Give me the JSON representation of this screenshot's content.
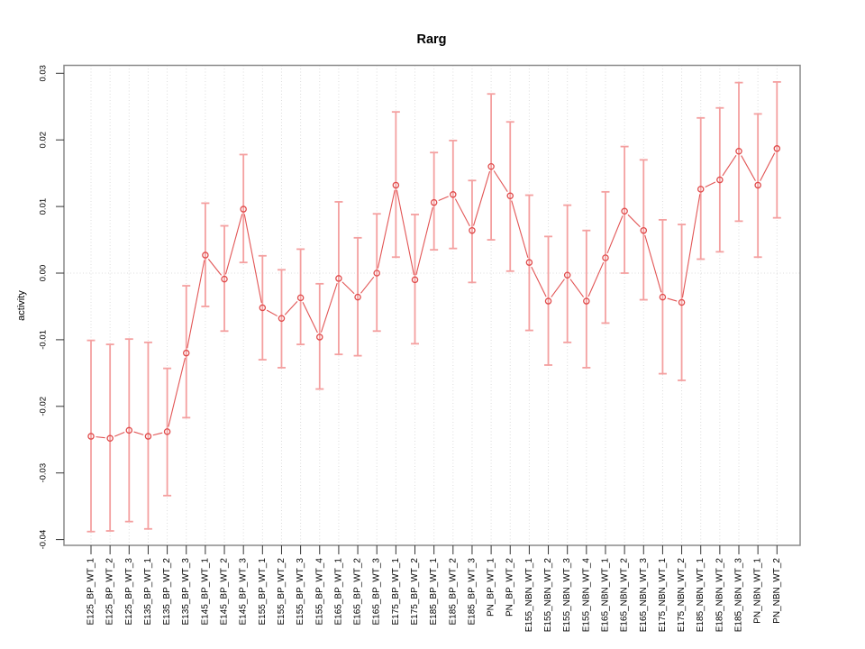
{
  "figure": {
    "title": "Rarg",
    "ylabel": "activity"
  },
  "chart_data": {
    "type": "scatter",
    "title": "Rarg",
    "xlabel": "",
    "ylabel": "activity",
    "legend": "none",
    "grid": "vertical dotted gridline at every category; horizontal dotted line at y=0",
    "marker": "open-circle with vertical error bars, consecutive points connected by line segments (R type='b')",
    "ylim": [
      -0.0412,
      0.0313
    ],
    "yticks": [
      0.03,
      0.02,
      0.01,
      0,
      -0.01,
      -0.02,
      -0.03,
      -0.04
    ],
    "categories": [
      "E125_BP_WT_1",
      "E125_BP_WT_2",
      "E125_BP_WT_3",
      "E135_BP_WT_1",
      "E135_BP_WT_2",
      "E135_BP_WT_3",
      "E145_BP_WT_1",
      "E145_BP_WT_2",
      "E145_BP_WT_3",
      "E155_BP_WT_1",
      "E155_BP_WT_2",
      "E155_BP_WT_3",
      "E155_BP_WT_4",
      "E165_BP_WT_1",
      "E165_BP_WT_2",
      "E165_BP_WT_3",
      "E175_BP_WT_1",
      "E175_BP_WT_2",
      "E185_BP_WT_1",
      "E185_BP_WT_2",
      "E185_BP_WT_3",
      "PN_BP_WT_1",
      "PN_BP_WT_2",
      "E155_NBN_WT_1",
      "E155_NBN_WT_2",
      "E155_NBN_WT_3",
      "E155_NBN_WT_4",
      "E165_NBN_WT_1",
      "E165_NBN_WT_2",
      "E165_NBN_WT_3",
      "E175_NBN_WT_1",
      "E175_NBN_WT_2",
      "E185_NBN_WT_1",
      "E185_NBN_WT_2",
      "E185_NBN_WT_3",
      "PN_NBN_WT_1",
      "PN_NBN_WT_2"
    ],
    "values": [
      -0.0245,
      -0.0248,
      -0.0236,
      -0.0245,
      -0.0238,
      -0.012,
      0.0027,
      -0.0009,
      0.0096,
      -0.0052,
      -0.0068,
      -0.0037,
      -0.0096,
      -0.0008,
      -0.0036,
      0.0,
      0.0132,
      -0.001,
      0.0106,
      0.0118,
      0.0064,
      0.016,
      0.0116,
      0.0016,
      -0.0042,
      -0.0003,
      -0.0042,
      0.0023,
      0.0093,
      0.0064,
      -0.0036,
      -0.0044,
      0.0126,
      0.014,
      0.0183,
      0.0132,
      0.0187
    ],
    "error_low": [
      -0.0388,
      -0.0387,
      -0.0373,
      -0.0384,
      -0.0334,
      -0.0217,
      -0.005,
      -0.0087,
      0.0016,
      -0.013,
      -0.0142,
      -0.0107,
      -0.0174,
      -0.0122,
      -0.0124,
      -0.0087,
      0.0024,
      -0.0106,
      0.0035,
      0.0037,
      -0.0014,
      0.005,
      0.0003,
      -0.0086,
      -0.0138,
      -0.0104,
      -0.0142,
      -0.0075,
      0.0,
      -0.004,
      -0.0151,
      -0.0161,
      0.0021,
      0.0032,
      0.0078,
      0.0024,
      0.0083
    ],
    "error_high": [
      -0.0101,
      -0.0107,
      -0.0099,
      -0.0104,
      -0.0143,
      -0.0019,
      0.0105,
      0.0071,
      0.0178,
      0.0026,
      0.0005,
      0.0036,
      -0.0016,
      0.0107,
      0.0053,
      0.0089,
      0.0242,
      0.0088,
      0.0181,
      0.0199,
      0.0139,
      0.0269,
      0.0227,
      0.0117,
      0.0055,
      0.0102,
      0.0064,
      0.0122,
      0.019,
      0.017,
      0.008,
      0.0073,
      0.0233,
      0.0248,
      0.0286,
      0.0239,
      0.0287
    ],
    "colors": {
      "point": "#e04b4b",
      "line": "#e25555",
      "error_bar": "#f4a0a0",
      "grid": "#dcdcdc",
      "box": "#8a8a8a",
      "tick": "#333333",
      "text": "#000000",
      "background": "#ffffff"
    }
  }
}
